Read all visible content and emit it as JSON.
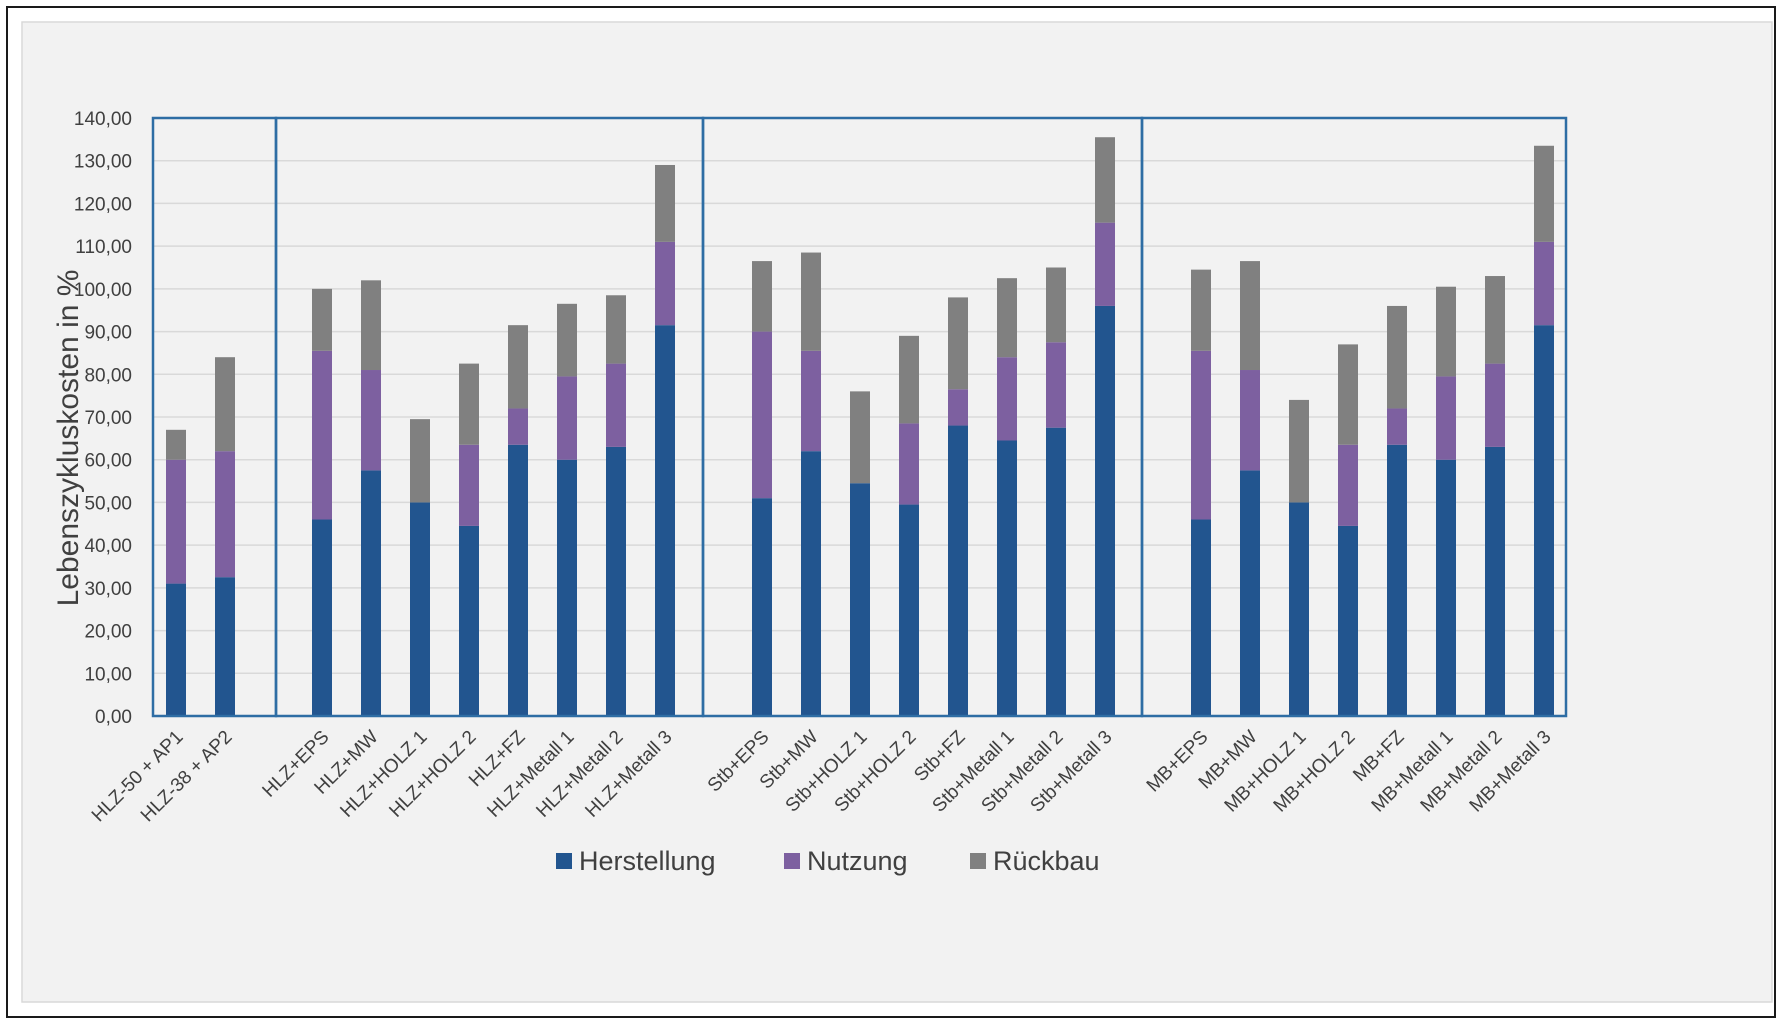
{
  "chart_data": {
    "type": "bar",
    "stacked": true,
    "title": "",
    "xlabel": "",
    "ylabel": "Lebenszykluskosten in %",
    "ylim": [
      0,
      140
    ],
    "ytick_step": 10,
    "ytick_labels": [
      "0,00",
      "10,00",
      "20,00",
      "30,00",
      "40,00",
      "50,00",
      "60,00",
      "70,00",
      "80,00",
      "90,00",
      "100,00",
      "110,00",
      "120,00",
      "130,00",
      "140,00"
    ],
    "grid": true,
    "legend_position": "bottom",
    "groups": [
      {
        "categories": [
          "HLZ-50 + AP1",
          "HLZ-38 + AP2"
        ]
      },
      {
        "categories": [
          "HLZ+EPS",
          "HLZ+MW",
          "HLZ+HOLZ  1",
          "HLZ+HOLZ  2",
          "HLZ+FZ",
          "HLZ+Metall 1",
          "HLZ+Metall 2",
          "HLZ+Metall 3"
        ]
      },
      {
        "categories": [
          "Stb+EPS",
          "Stb+MW",
          "Stb+HOLZ  1",
          "Stb+HOLZ  2",
          "Stb+FZ",
          "Stb+Metall 1",
          "Stb+Metall 2",
          "Stb+Metall 3"
        ]
      },
      {
        "categories": [
          "MB+EPS",
          "MB+MW",
          "MB+HOLZ  1",
          "MB+HOLZ  2",
          "MB+FZ",
          "MB+Metall 1",
          "MB+Metall 2",
          "MB+Metall 3"
        ]
      }
    ],
    "series": [
      {
        "name": "Herstellung",
        "color": "#22558f",
        "values": [
          31,
          32.5,
          46,
          57.5,
          50,
          44.5,
          63.5,
          60,
          63,
          91.5,
          51,
          62,
          54.5,
          49.5,
          68,
          64.5,
          67.5,
          96,
          46,
          57.5,
          50,
          44.5,
          63.5,
          60,
          63,
          91.5
        ]
      },
      {
        "name": "Nutzung",
        "color": "#7d60a0",
        "values": [
          29,
          29.5,
          39.5,
          23.5,
          0,
          19,
          8.5,
          19.5,
          19.5,
          19.5,
          39,
          23.5,
          0,
          19,
          8.5,
          19.5,
          20,
          19.5,
          39.5,
          23.5,
          0,
          19,
          8.5,
          19.5,
          19.5,
          19.5
        ]
      },
      {
        "name": "Rückbau",
        "color": "#808080",
        "values": [
          7,
          22,
          14.5,
          21,
          19.5,
          19,
          19.5,
          17,
          16,
          18,
          16.5,
          23,
          21.5,
          20.5,
          21.5,
          18.5,
          17.5,
          20,
          19,
          25.5,
          24,
          23.5,
          24,
          21,
          20.5,
          22.5
        ]
      }
    ]
  }
}
